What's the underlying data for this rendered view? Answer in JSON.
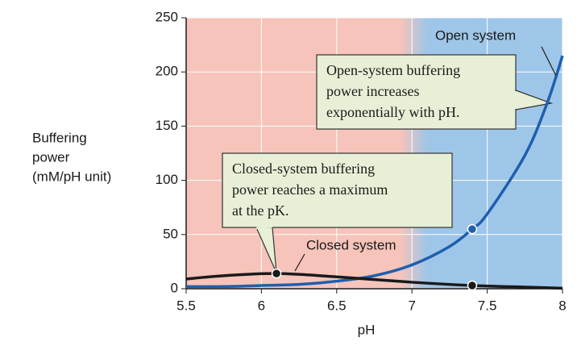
{
  "chart_data": {
    "type": "line",
    "xlabel": "pH",
    "ylabel": [
      "Buffering",
      "power",
      "(mM/pH unit)"
    ],
    "xlim": [
      5.5,
      8
    ],
    "xticks": [
      5.5,
      6,
      6.5,
      7,
      7.5,
      8
    ],
    "ylim": [
      0,
      250
    ],
    "yticks": [
      0,
      50,
      100,
      150,
      200,
      250
    ],
    "grid": true,
    "background": {
      "left_color": "#f6c4ba",
      "right_color": "#9ec6e8"
    },
    "series": [
      {
        "name": "Open system",
        "color": "#1f5fae",
        "x": [
          5.5,
          5.75,
          6.0,
          6.25,
          6.5,
          6.75,
          7.0,
          7.25,
          7.4,
          7.5,
          7.75,
          7.9,
          8.0
        ],
        "values": [
          2,
          2,
          3,
          4,
          7,
          12,
          22,
          39,
          55,
          69,
          123,
          172,
          215
        ],
        "markers": [
          7.4
        ]
      },
      {
        "name": "Closed system",
        "color": "#1a1a1a",
        "x": [
          5.5,
          5.75,
          6.1,
          6.5,
          7.0,
          7.4,
          7.75,
          8.0
        ],
        "values": [
          9,
          12,
          14,
          11,
          6,
          3,
          1.5,
          0.5
        ],
        "markers": [
          6.1,
          7.4
        ]
      }
    ],
    "annotations": [
      {
        "lines": [
          "Open-system buffering",
          "power increases",
          "exponentially with pH."
        ]
      },
      {
        "lines": [
          "Closed-system buffering",
          "power reaches a maximum",
          "at the pK."
        ]
      }
    ]
  }
}
